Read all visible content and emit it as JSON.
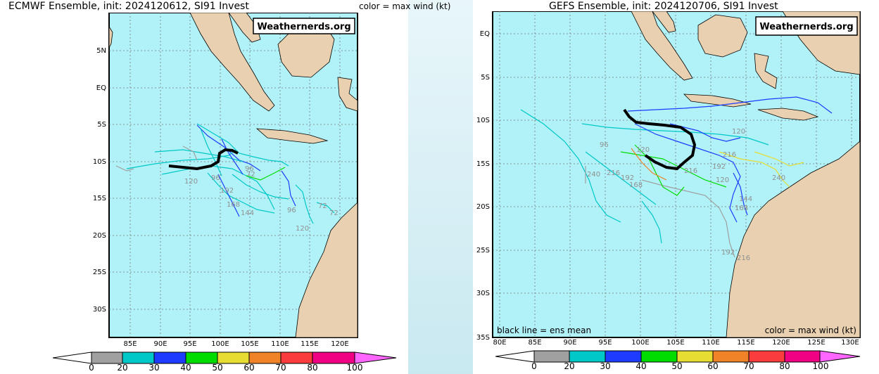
{
  "left_map": {
    "title": "ECMWF Ensemble, init: 2024120612, SI91 Invest",
    "color_note": "color = max wind (kt)",
    "watermark": "Weathernerds.org",
    "lat_labels": [
      "5N",
      "EQ",
      "5S",
      "10S",
      "15S",
      "20S",
      "25S",
      "30S"
    ],
    "lon_labels": [
      "85E",
      "90E",
      "95E",
      "100E",
      "105E",
      "110E",
      "115E",
      "120E"
    ],
    "forecast_hour_labels": [
      "96",
      "120",
      "96",
      "72",
      "192",
      "168",
      "144",
      "96",
      "72",
      "72",
      "120"
    ]
  },
  "right_map": {
    "title": "GEFS Ensemble, init: 2024120706, SI91 Invest",
    "watermark": "Weathernerds.org",
    "lat_labels": [
      "EQ",
      "5S",
      "10S",
      "15S",
      "20S",
      "25S",
      "30S",
      "35S"
    ],
    "lon_labels": [
      "80E",
      "85E",
      "90E",
      "95E",
      "100E",
      "105E",
      "110E",
      "115E",
      "120E",
      "125E",
      "130E"
    ],
    "forecast_hour_labels": [
      "120",
      "216",
      "240",
      "216",
      "192",
      "168",
      "120",
      "216",
      "192",
      "240",
      "120",
      "144",
      "168",
      "192",
      "216",
      "96"
    ],
    "legend_left": "black line = ens mean",
    "legend_right": "color = max wind (kt)"
  },
  "colorbar": {
    "labels": [
      "0",
      "20",
      "30",
      "40",
      "50",
      "60",
      "70",
      "80",
      "100"
    ],
    "colors": [
      "#ffffff",
      "#a0a0a0",
      "#00c8c8",
      "#1e3cff",
      "#00dc00",
      "#e6dc32",
      "#f08228",
      "#fa3c3c",
      "#f00082",
      "#ff66ff"
    ]
  },
  "colors": {
    "ocean": "#b0f2f8",
    "land": "#e8d0b0",
    "mean_track": "#000000"
  }
}
